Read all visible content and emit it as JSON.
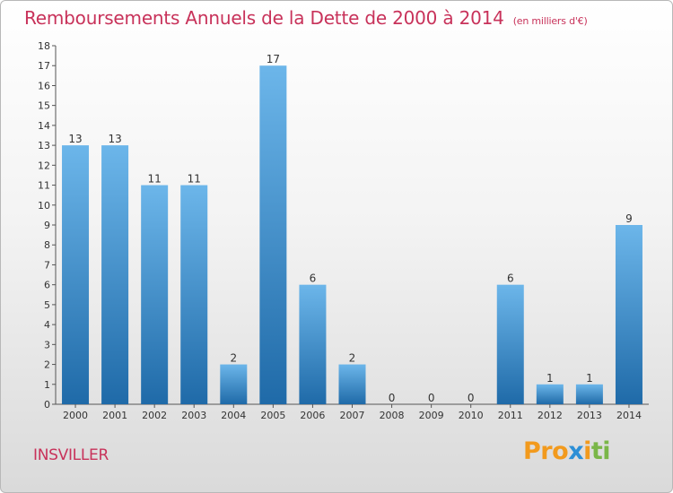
{
  "header": {
    "title": "Remboursements Annuels de la Dette de 2000 à 2014",
    "unit": "(en milliers d'€)"
  },
  "footer": {
    "commune": "INSVILLER",
    "logo": [
      "P",
      "r",
      "o",
      "x",
      "i",
      "t",
      "i"
    ]
  },
  "colors": {
    "title": "#c8325a",
    "bar_light": "#6cb6ea",
    "bar_dark": "#1f6aa8",
    "logo": [
      "#f29a1d",
      "#f29a1d",
      "#f29a1d",
      "#2c8fd6",
      "#f29a1d",
      "#7ab648",
      "#7ab648"
    ]
  },
  "chart_data": {
    "type": "bar",
    "categories": [
      "2000",
      "2001",
      "2002",
      "2003",
      "2004",
      "2005",
      "2006",
      "2007",
      "2008",
      "2009",
      "2010",
      "2011",
      "2012",
      "2013",
      "2014"
    ],
    "values": [
      13,
      13,
      11,
      11,
      2,
      17,
      6,
      2,
      0,
      0,
      0,
      6,
      1,
      1,
      9
    ],
    "data_labels": [
      "13",
      "13",
      "11",
      "11",
      "2",
      "17",
      "6",
      "2",
      "0",
      "0",
      "0",
      "6",
      "1",
      "1",
      "9"
    ],
    "yticks": [
      "0",
      "1",
      "2",
      "3",
      "4",
      "5",
      "6",
      "7",
      "8",
      "9",
      "10",
      "11",
      "12",
      "13",
      "14",
      "15",
      "16",
      "17",
      "18"
    ],
    "ylim": [
      0,
      18
    ],
    "grid": false,
    "legend": "none"
  }
}
